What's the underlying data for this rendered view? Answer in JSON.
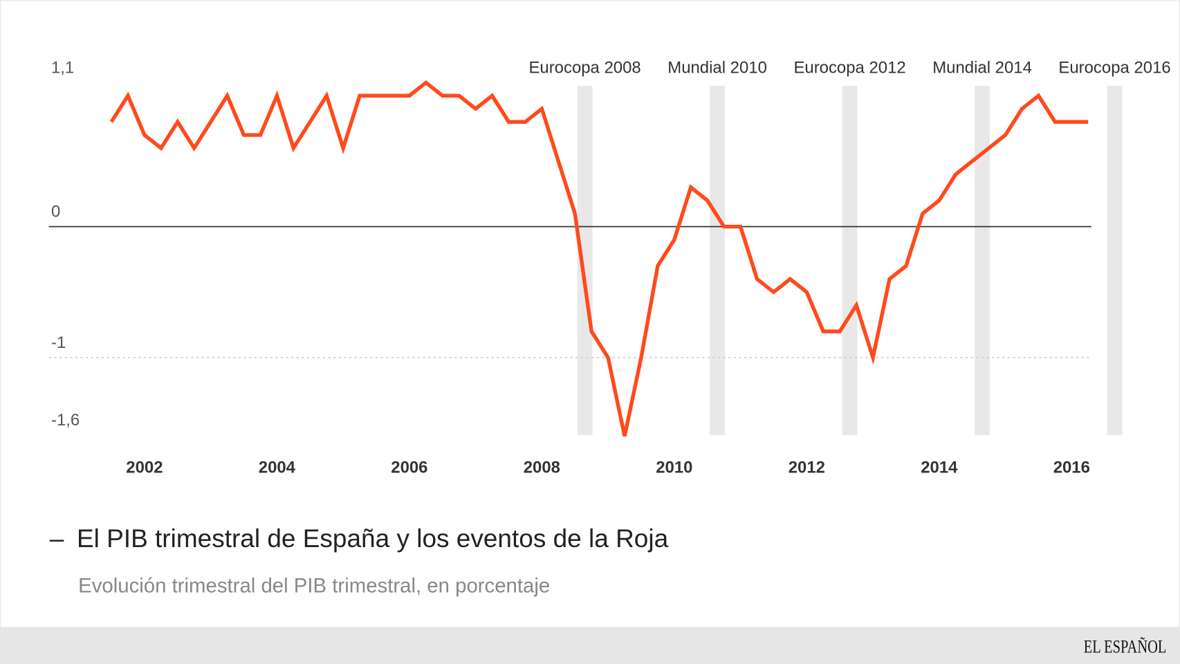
{
  "chart_data": {
    "type": "line",
    "title": "El PIB trimestral de España y los eventos de la Roja",
    "subtitle": "Evolución trimestral del PIB trimestral, en porcentaje",
    "xlabel": "",
    "ylabel": "",
    "ylim": [
      -1.6,
      1.1
    ],
    "y_ticks": [
      {
        "value": 1.1,
        "label": "1,1"
      },
      {
        "value": 0,
        "label": "0"
      },
      {
        "value": -1,
        "label": "-1"
      },
      {
        "value": -1.6,
        "label": "-1,6"
      }
    ],
    "x_ticks": [
      "2002",
      "2004",
      "2006",
      "2008",
      "2010",
      "2012",
      "2014",
      "2016"
    ],
    "x_start": 2001.5,
    "x_step": 0.25,
    "values": [
      0.8,
      1.0,
      0.7,
      0.6,
      0.8,
      0.6,
      0.8,
      1.0,
      0.7,
      0.7,
      1.0,
      0.6,
      0.8,
      1.0,
      0.6,
      1.0,
      1.0,
      1.0,
      1.0,
      1.1,
      1.0,
      1.0,
      0.9,
      1.0,
      0.8,
      0.8,
      0.9,
      0.5,
      0.1,
      -0.8,
      -1.0,
      -1.6,
      -1.0,
      -0.3,
      -0.1,
      0.3,
      0.2,
      0.0,
      0.0,
      -0.4,
      -0.5,
      -0.4,
      -0.5,
      -0.8,
      -0.8,
      -0.6,
      -1.0,
      -0.4,
      -0.3,
      0.1,
      0.2,
      0.4,
      0.5,
      0.6,
      0.7,
      0.9,
      1.0,
      0.8,
      0.8,
      0.8
    ],
    "events": [
      {
        "label": "Eurocopa 2008",
        "x": 2008.65
      },
      {
        "label": "Mundial 2010",
        "x": 2010.65
      },
      {
        "label": "Eurocopa 2012",
        "x": 2012.65
      },
      {
        "label": "Mundial 2014",
        "x": 2014.65
      },
      {
        "label": "Eurocopa 2016",
        "x": 2016.65
      }
    ],
    "grid": "zero line solid, -1 line dotted",
    "legend": "none",
    "colors": {
      "line": "#ff4a1c",
      "event_band": "#e8e8e8",
      "zero_line": "#333333",
      "footer": "#e6e6e6"
    }
  },
  "footer": {
    "logo": "EL ESPAÑOL"
  }
}
